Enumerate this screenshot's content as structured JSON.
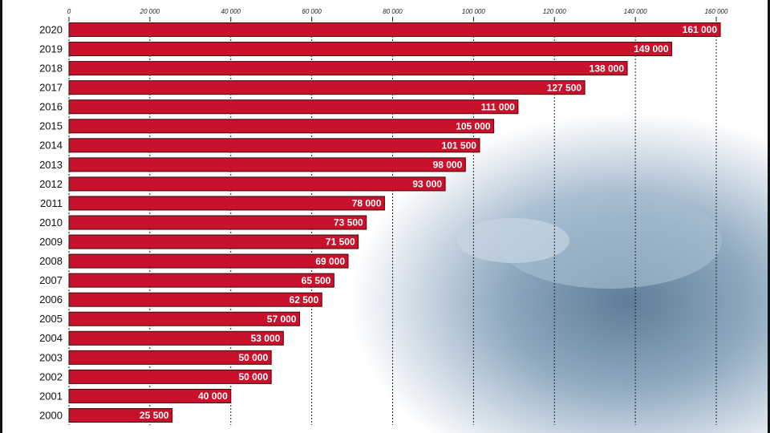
{
  "chart_data": {
    "type": "bar",
    "orientation": "horizontal",
    "categories": [
      "2020",
      "2019",
      "2018",
      "2017",
      "2016",
      "2015",
      "2014",
      "2013",
      "2012",
      "2011",
      "2010",
      "2009",
      "2008",
      "2007",
      "2006",
      "2005",
      "2004",
      "2003",
      "2002",
      "2001",
      "2000"
    ],
    "values": [
      161000,
      149000,
      138000,
      127500,
      111000,
      105000,
      101500,
      98000,
      93000,
      78000,
      73500,
      71500,
      69000,
      65500,
      62500,
      57000,
      53000,
      50000,
      50000,
      40000,
      25500
    ],
    "value_labels": [
      "161 000",
      "149 000",
      "138 000",
      "127 500",
      "111 000",
      "105 000",
      "101 500",
      "98 000",
      "93 000",
      "78 000",
      "73 500",
      "71 500",
      "69 000",
      "65 500",
      "62 500",
      "57 000",
      "53 000",
      "50 000",
      "50 000",
      "40 000",
      "25 500"
    ],
    "color": "#c8122c",
    "xlim": [
      0,
      160000
    ],
    "xticks": [
      0,
      {
        "value": 20000,
        "label": "20 000"
      },
      {
        "value": 40000,
        "label": "40 000"
      },
      {
        "value": 60000,
        "label": "60 000"
      },
      {
        "value": 80000,
        "label": "80 000"
      },
      {
        "value": 100000,
        "label": "100 000"
      },
      {
        "value": 120000,
        "label": "120 000"
      },
      {
        "value": 140000,
        "label": "140 000"
      },
      {
        "value": 160000,
        "label": "160 000"
      }
    ],
    "grid": true
  }
}
